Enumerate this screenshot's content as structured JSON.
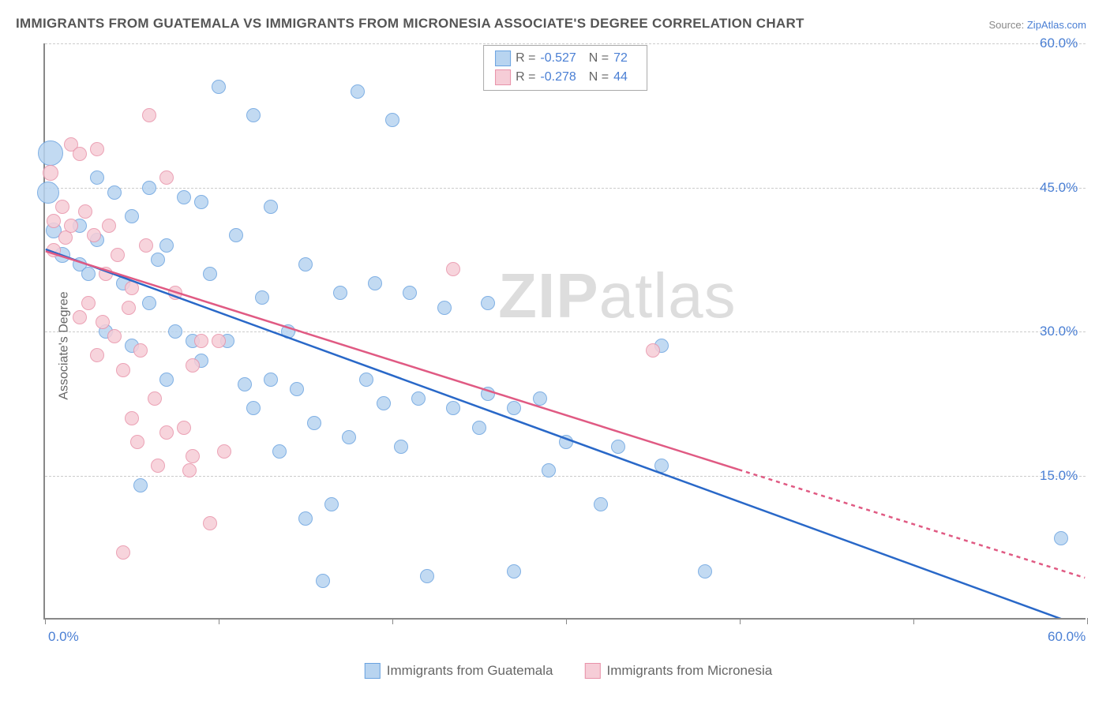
{
  "title": "IMMIGRANTS FROM GUATEMALA VS IMMIGRANTS FROM MICRONESIA ASSOCIATE'S DEGREE CORRELATION CHART",
  "source_prefix": "Source: ",
  "source_name": "ZipAtlas.com",
  "yaxis_label": "Associate's Degree",
  "watermark_a": "ZIP",
  "watermark_b": "atlas",
  "chart": {
    "type": "scatter",
    "xlim": [
      0,
      60
    ],
    "ylim": [
      0,
      60
    ],
    "yticks": [
      15,
      30,
      45,
      60
    ],
    "ytick_labels": [
      "15.0%",
      "30.0%",
      "45.0%",
      "60.0%"
    ],
    "xticks": [
      0,
      10,
      20,
      30,
      40,
      50,
      60
    ],
    "xtick_shown_labels": {
      "0": "0.0%",
      "60": "60.0%"
    },
    "grid_color": "#cccccc",
    "axis_color": "#888888",
    "background_color": "#ffffff",
    "series": [
      {
        "name": "Immigrants from Guatemala",
        "short": "guatemala",
        "fill": "#b8d4f0",
        "stroke": "#6aa3e0",
        "line_color": "#2968c8",
        "R_label": "R = ",
        "R_value": "-0.527",
        "N_label": "N = ",
        "N_value": "72",
        "trend": {
          "x1": 0,
          "y1": 38.5,
          "x2": 60,
          "y2": -1
        },
        "points": [
          {
            "x": 0.3,
            "y": 48.6,
            "r": 16
          },
          {
            "x": 0.2,
            "y": 44.5,
            "r": 14
          },
          {
            "x": 0.5,
            "y": 40.5,
            "r": 10
          },
          {
            "x": 1.0,
            "y": 38.0,
            "r": 10
          },
          {
            "x": 2.0,
            "y": 41.0,
            "r": 9
          },
          {
            "x": 2.0,
            "y": 37.0,
            "r": 9
          },
          {
            "x": 2.5,
            "y": 36.0,
            "r": 9
          },
          {
            "x": 3.0,
            "y": 39.5,
            "r": 9
          },
          {
            "x": 3.0,
            "y": 46.0,
            "r": 9
          },
          {
            "x": 3.5,
            "y": 30.0,
            "r": 9
          },
          {
            "x": 4.0,
            "y": 44.5,
            "r": 9
          },
          {
            "x": 4.5,
            "y": 35.0,
            "r": 9
          },
          {
            "x": 5.0,
            "y": 42.0,
            "r": 9
          },
          {
            "x": 5.0,
            "y": 28.5,
            "r": 9
          },
          {
            "x": 5.5,
            "y": 14.0,
            "r": 9
          },
          {
            "x": 6.0,
            "y": 45.0,
            "r": 9
          },
          {
            "x": 6.0,
            "y": 33.0,
            "r": 9
          },
          {
            "x": 6.5,
            "y": 37.5,
            "r": 9
          },
          {
            "x": 7.0,
            "y": 25.0,
            "r": 9
          },
          {
            "x": 7.0,
            "y": 39.0,
            "r": 9
          },
          {
            "x": 7.5,
            "y": 30.0,
            "r": 9
          },
          {
            "x": 8.0,
            "y": 44.0,
            "r": 9
          },
          {
            "x": 8.5,
            "y": 29.0,
            "r": 9
          },
          {
            "x": 9.0,
            "y": 27.0,
            "r": 9
          },
          {
            "x": 9.0,
            "y": 43.5,
            "r": 9
          },
          {
            "x": 9.5,
            "y": 36.0,
            "r": 9
          },
          {
            "x": 10.0,
            "y": 55.5,
            "r": 9
          },
          {
            "x": 10.5,
            "y": 29.0,
            "r": 9
          },
          {
            "x": 11.0,
            "y": 40.0,
            "r": 9
          },
          {
            "x": 11.5,
            "y": 24.5,
            "r": 9
          },
          {
            "x": 12.0,
            "y": 52.5,
            "r": 9
          },
          {
            "x": 12.0,
            "y": 22.0,
            "r": 9
          },
          {
            "x": 12.5,
            "y": 33.5,
            "r": 9
          },
          {
            "x": 13.0,
            "y": 25.0,
            "r": 9
          },
          {
            "x": 13.0,
            "y": 43.0,
            "r": 9
          },
          {
            "x": 13.5,
            "y": 17.5,
            "r": 9
          },
          {
            "x": 14.0,
            "y": 30.0,
            "r": 9
          },
          {
            "x": 14.5,
            "y": 24.0,
            "r": 9
          },
          {
            "x": 15.0,
            "y": 10.5,
            "r": 9
          },
          {
            "x": 15.0,
            "y": 37.0,
            "r": 9
          },
          {
            "x": 15.5,
            "y": 20.5,
            "r": 9
          },
          {
            "x": 16.0,
            "y": 4.0,
            "r": 9
          },
          {
            "x": 16.5,
            "y": 12.0,
            "r": 9
          },
          {
            "x": 17.0,
            "y": 34.0,
            "r": 9
          },
          {
            "x": 17.5,
            "y": 19.0,
            "r": 9
          },
          {
            "x": 18.0,
            "y": 55.0,
            "r": 9
          },
          {
            "x": 18.5,
            "y": 25.0,
            "r": 9
          },
          {
            "x": 19.0,
            "y": 35.0,
            "r": 9
          },
          {
            "x": 19.5,
            "y": 22.5,
            "r": 9
          },
          {
            "x": 20.0,
            "y": 52.0,
            "r": 9
          },
          {
            "x": 20.5,
            "y": 18.0,
            "r": 9
          },
          {
            "x": 21.0,
            "y": 34.0,
            "r": 9
          },
          {
            "x": 21.5,
            "y": 23.0,
            "r": 9
          },
          {
            "x": 22.0,
            "y": 4.5,
            "r": 9
          },
          {
            "x": 23.0,
            "y": 32.5,
            "r": 9
          },
          {
            "x": 23.5,
            "y": 22.0,
            "r": 9
          },
          {
            "x": 25.0,
            "y": 20.0,
            "r": 9
          },
          {
            "x": 25.5,
            "y": 33.0,
            "r": 9
          },
          {
            "x": 25.5,
            "y": 23.5,
            "r": 9
          },
          {
            "x": 27.0,
            "y": 5.0,
            "r": 9
          },
          {
            "x": 27.0,
            "y": 22.0,
            "r": 9
          },
          {
            "x": 28.5,
            "y": 23.0,
            "r": 9
          },
          {
            "x": 29.0,
            "y": 15.5,
            "r": 9
          },
          {
            "x": 30.0,
            "y": 18.5,
            "r": 9
          },
          {
            "x": 32.0,
            "y": 12.0,
            "r": 9
          },
          {
            "x": 33.0,
            "y": 18.0,
            "r": 9
          },
          {
            "x": 35.5,
            "y": 16.0,
            "r": 9
          },
          {
            "x": 35.5,
            "y": 28.5,
            "r": 9
          },
          {
            "x": 38.0,
            "y": 5.0,
            "r": 9
          },
          {
            "x": 58.5,
            "y": 8.5,
            "r": 9
          }
        ]
      },
      {
        "name": "Immigrants from Micronesia",
        "short": "micronesia",
        "fill": "#f6cdd7",
        "stroke": "#e892a9",
        "line_color": "#e05a83",
        "R_label": "R = ",
        "R_value": "-0.278",
        "N_label": "N = ",
        "N_value": "44",
        "trend": {
          "x1": 0,
          "y1": 38.3,
          "x2": 40,
          "y2": 15.5
        },
        "trend_dashed_ext": {
          "x1": 40,
          "y1": 15.5,
          "x2": 60,
          "y2": 4.2
        },
        "points": [
          {
            "x": 0.3,
            "y": 46.5,
            "r": 10
          },
          {
            "x": 0.5,
            "y": 41.5,
            "r": 9
          },
          {
            "x": 0.5,
            "y": 38.5,
            "r": 9
          },
          {
            "x": 1.0,
            "y": 43.0,
            "r": 9
          },
          {
            "x": 1.2,
            "y": 39.8,
            "r": 9
          },
          {
            "x": 1.5,
            "y": 41.0,
            "r": 9
          },
          {
            "x": 1.5,
            "y": 49.5,
            "r": 9
          },
          {
            "x": 2.0,
            "y": 48.5,
            "r": 9
          },
          {
            "x": 2.0,
            "y": 31.5,
            "r": 9
          },
          {
            "x": 2.3,
            "y": 42.5,
            "r": 9
          },
          {
            "x": 2.5,
            "y": 33.0,
            "r": 9
          },
          {
            "x": 2.8,
            "y": 40.0,
            "r": 9
          },
          {
            "x": 3.0,
            "y": 27.5,
            "r": 9
          },
          {
            "x": 3.0,
            "y": 49.0,
            "r": 9
          },
          {
            "x": 3.3,
            "y": 31.0,
            "r": 9
          },
          {
            "x": 3.5,
            "y": 36.0,
            "r": 9
          },
          {
            "x": 3.7,
            "y": 41.0,
            "r": 9
          },
          {
            "x": 4.0,
            "y": 29.5,
            "r": 9
          },
          {
            "x": 4.2,
            "y": 38.0,
            "r": 9
          },
          {
            "x": 4.5,
            "y": 26.0,
            "r": 9
          },
          {
            "x": 4.5,
            "y": 7.0,
            "r": 9
          },
          {
            "x": 4.8,
            "y": 32.5,
            "r": 9
          },
          {
            "x": 5.0,
            "y": 21.0,
            "r": 9
          },
          {
            "x": 5.0,
            "y": 34.5,
            "r": 9
          },
          {
            "x": 5.3,
            "y": 18.5,
            "r": 9
          },
          {
            "x": 5.5,
            "y": 28.0,
            "r": 9
          },
          {
            "x": 5.8,
            "y": 39.0,
            "r": 9
          },
          {
            "x": 6.0,
            "y": 52.5,
            "r": 9
          },
          {
            "x": 6.3,
            "y": 23.0,
            "r": 9
          },
          {
            "x": 6.5,
            "y": 16.0,
            "r": 9
          },
          {
            "x": 7.0,
            "y": 46.0,
            "r": 9
          },
          {
            "x": 7.0,
            "y": 19.5,
            "r": 9
          },
          {
            "x": 7.5,
            "y": 34.0,
            "r": 9
          },
          {
            "x": 8.0,
            "y": 20.0,
            "r": 9
          },
          {
            "x": 8.3,
            "y": 15.5,
            "r": 9
          },
          {
            "x": 8.5,
            "y": 26.5,
            "r": 9
          },
          {
            "x": 8.5,
            "y": 17.0,
            "r": 9
          },
          {
            "x": 9.0,
            "y": 29.0,
            "r": 9
          },
          {
            "x": 9.5,
            "y": 10.0,
            "r": 9
          },
          {
            "x": 10.0,
            "y": 29.0,
            "r": 9
          },
          {
            "x": 10.3,
            "y": 17.5,
            "r": 9
          },
          {
            "x": 23.5,
            "y": 36.5,
            "r": 9
          },
          {
            "x": 35.0,
            "y": 28.0,
            "r": 9
          }
        ]
      }
    ]
  }
}
